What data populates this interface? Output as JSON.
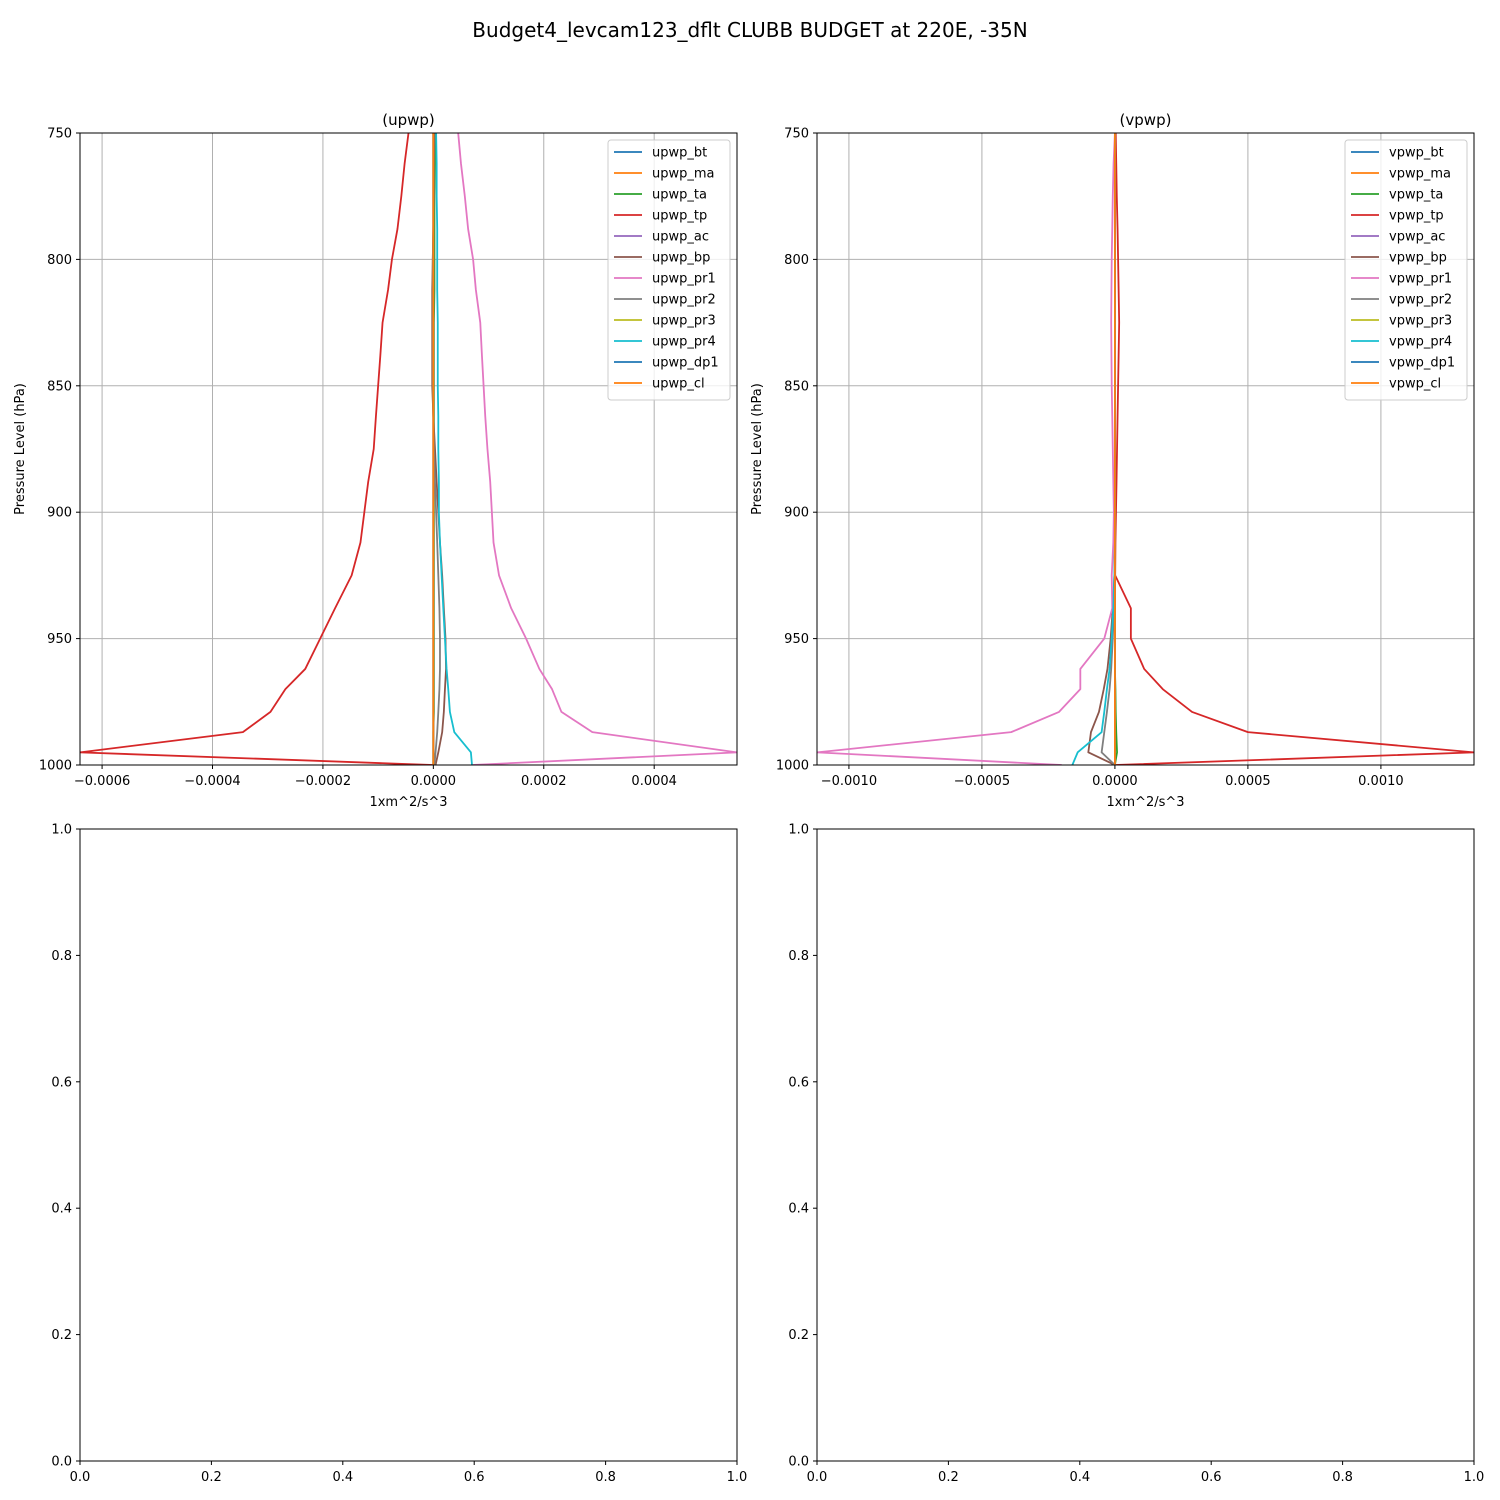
{
  "figure": {
    "title": "Budget4_levcam123_dflt CLUBB BUDGET at 220E, -35N"
  },
  "colors": [
    "#1f77b4",
    "#ff7f0e",
    "#2ca02c",
    "#d62728",
    "#9467bd",
    "#8c564b",
    "#e377c2",
    "#7f7f7f",
    "#bcbd22",
    "#17becf",
    "#1f77b4",
    "#ff7f0e"
  ],
  "chart_data": [
    {
      "type": "line",
      "title": "(upwp)",
      "xlabel": "1xm^2/s^3",
      "ylabel": "Pressure Level (hPa)",
      "xlim": [
        -0.00064,
        0.00055
      ],
      "ylim": [
        1000,
        750
      ],
      "xticks": [
        -0.0006,
        -0.0004,
        -0.0002,
        0.0,
        0.0002,
        0.0004
      ],
      "xtick_labels": [
        "−0.0006",
        "−0.0004",
        "−0.0002",
        "0.0000",
        "0.0002",
        "0.0004"
      ],
      "yticks": [
        750,
        800,
        850,
        900,
        950,
        1000
      ],
      "ytick_labels": [
        "750",
        "800",
        "850",
        "900",
        "950",
        "1000"
      ],
      "grid": true,
      "legend": "top-right",
      "levels": [
        750,
        762,
        775,
        788,
        800,
        812,
        825,
        838,
        850,
        862,
        875,
        888,
        900,
        912,
        925,
        938,
        950,
        962,
        970,
        979,
        987,
        995,
        1000
      ],
      "series": [
        {
          "name": "upwp_bt",
          "values": [
            0,
            0,
            0,
            0,
            0,
            0,
            0,
            0,
            0,
            0,
            0,
            0,
            0,
            0,
            0,
            0,
            0,
            0,
            0,
            0,
            0,
            0,
            0
          ]
        },
        {
          "name": "upwp_ma",
          "values": [
            0,
            0,
            0,
            0,
            0,
            0,
            0,
            0,
            0,
            0,
            0,
            0,
            0,
            0,
            0,
            0,
            0,
            0,
            0,
            0,
            0,
            0,
            0
          ]
        },
        {
          "name": "upwp_ta",
          "values": [
            3e-06,
            3e-06,
            2e-06,
            2e-06,
            2e-06,
            2e-06,
            1e-06,
            1e-06,
            1e-06,
            1e-06,
            1e-06,
            1e-06,
            1e-06,
            1e-06,
            1e-06,
            1e-06,
            1e-06,
            1e-06,
            1e-06,
            1e-06,
            0,
            0,
            0
          ]
        },
        {
          "name": "upwp_tp",
          "values": [
            -4.5e-05,
            -5.2e-05,
            -5.8e-05,
            -6.5e-05,
            -7.5e-05,
            -8.2e-05,
            -9.2e-05,
            -9.6e-05,
            -0.0001,
            -0.000104,
            -0.000108,
            -0.000118,
            -0.000125,
            -0.000132,
            -0.000148,
            -0.000178,
            -0.000205,
            -0.000232,
            -0.000268,
            -0.000295,
            -0.000345,
            -0.00064,
            0
          ]
        },
        {
          "name": "upwp_ac",
          "values": [
            0,
            0,
            0,
            0,
            0,
            0,
            0,
            0,
            0,
            0,
            0,
            0,
            0,
            0,
            0,
            0,
            0,
            0,
            0,
            0,
            0,
            0,
            0
          ]
        },
        {
          "name": "upwp_bp",
          "values": [
            2e-06,
            1e-06,
            1e-06,
            0,
            -1e-06,
            -2e-06,
            -2e-06,
            -2e-06,
            -2e-06,
            0,
            3e-06,
            6e-06,
            9e-06,
            1.2e-05,
            1.6e-05,
            1.9e-05,
            2.2e-05,
            2.3e-05,
            2.1e-05,
            1.9e-05,
            1.6e-05,
            9e-06,
            4e-06
          ]
        },
        {
          "name": "upwp_pr1",
          "values": [
            4.5e-05,
            5e-05,
            5.7e-05,
            6.3e-05,
            7.2e-05,
            7.7e-05,
            8.5e-05,
            8.8e-05,
            9.1e-05,
            9.4e-05,
            9.8e-05,
            0.000103,
            0.000106,
            0.000109,
            0.000119,
            0.000141,
            0.000168,
            0.000192,
            0.000215,
            0.000232,
            0.000288,
            0.00055,
            7e-05
          ]
        },
        {
          "name": "upwp_pr2",
          "values": [
            0,
            0,
            0,
            0,
            -1e-06,
            -1e-06,
            -1e-06,
            -1e-06,
            -1e-06,
            0,
            1e-06,
            3e-06,
            5e-06,
            7e-06,
            9e-06,
            1.1e-05,
            1.2e-05,
            1.2e-05,
            1.1e-05,
            9e-06,
            7e-06,
            4e-06,
            2e-06
          ]
        },
        {
          "name": "upwp_pr3",
          "values": [
            0,
            0,
            0,
            0,
            0,
            0,
            0,
            0,
            0,
            0,
            0,
            0,
            0,
            0,
            0,
            0,
            0,
            0,
            0,
            0,
            0,
            0,
            0
          ]
        },
        {
          "name": "upwp_pr4",
          "values": [
            5e-06,
            6e-06,
            6e-06,
            7e-06,
            7e-06,
            7e-06,
            8e-06,
            8e-06,
            8e-06,
            9e-06,
            9e-06,
            1e-05,
            1e-05,
            1.2e-05,
            1.5e-05,
            1.8e-05,
            2.1e-05,
            2.4e-05,
            2.7e-05,
            3e-05,
            3.8e-05,
            6.8e-05,
            7e-05
          ]
        },
        {
          "name": "upwp_dp1",
          "values": [
            0,
            0,
            0,
            0,
            0,
            0,
            0,
            0,
            0,
            0,
            0,
            0,
            0,
            0,
            0,
            0,
            0,
            0,
            0,
            0,
            0,
            0,
            0
          ]
        },
        {
          "name": "upwp_cl",
          "values": [
            0,
            0,
            0,
            0,
            0,
            0,
            0,
            0,
            0,
            0,
            0,
            0,
            0,
            0,
            0,
            0,
            0,
            0,
            0,
            0,
            0,
            0,
            0
          ]
        }
      ]
    },
    {
      "type": "line",
      "title": "(vpwp)",
      "xlabel": "1xm^2/s^3",
      "ylabel": "Pressure Level (hPa)",
      "xlim": [
        -0.00112,
        0.00135
      ],
      "ylim": [
        1000,
        750
      ],
      "xticks": [
        -0.001,
        -0.0005,
        0.0,
        0.0005,
        0.001
      ],
      "xtick_labels": [
        "−0.0010",
        "−0.0005",
        "0.0000",
        "0.0005",
        "0.0010"
      ],
      "yticks": [
        750,
        800,
        850,
        900,
        950,
        1000
      ],
      "ytick_labels": [
        "750",
        "800",
        "850",
        "900",
        "950",
        "1000"
      ],
      "grid": true,
      "legend": "top-right",
      "levels": [
        750,
        762,
        775,
        788,
        800,
        812,
        825,
        838,
        850,
        862,
        875,
        888,
        900,
        912,
        925,
        938,
        950,
        962,
        970,
        979,
        987,
        995,
        1000
      ],
      "series": [
        {
          "name": "vpwp_bt",
          "values": [
            0,
            0,
            0,
            0,
            0,
            0,
            0,
            0,
            0,
            0,
            0,
            0,
            0,
            0,
            0,
            0,
            0,
            0,
            0,
            0,
            0,
            0,
            0
          ]
        },
        {
          "name": "vpwp_ma",
          "values": [
            0,
            0,
            0,
            0,
            0,
            0,
            0,
            0,
            0,
            0,
            0,
            0,
            0,
            0,
            0,
            0,
            0,
            0,
            0,
            0,
            0,
            0,
            0
          ]
        },
        {
          "name": "vpwp_ta",
          "values": [
            0,
            0,
            0,
            0,
            0,
            0,
            0,
            0,
            0,
            0,
            0,
            0,
            0,
            0,
            0,
            0,
            0,
            0,
            2e-06,
            3e-06,
            5e-06,
            8e-06,
            0
          ]
        },
        {
          "name": "vpwp_tp",
          "values": [
            3e-06,
            5e-06,
            7e-06,
            1e-05,
            1.2e-05,
            1.4e-05,
            1.6e-05,
            1.4e-05,
            1.2e-05,
            1e-05,
            8e-06,
            6e-06,
            4e-06,
            2e-06,
            1e-06,
            6e-05,
            6e-05,
            0.00011,
            0.00018,
            0.00029,
            0.0005,
            0.00135,
            0
          ]
        },
        {
          "name": "vpwp_ac",
          "values": [
            0,
            0,
            0,
            0,
            0,
            0,
            0,
            0,
            0,
            0,
            0,
            0,
            0,
            0,
            0,
            0,
            0,
            0,
            0,
            0,
            0,
            0,
            0
          ]
        },
        {
          "name": "vpwp_bp",
          "values": [
            0,
            0,
            0,
            0,
            0,
            0,
            0,
            0,
            0,
            0,
            0,
            0,
            0,
            0,
            -2e-06,
            -8e-06,
            -1.6e-05,
            -2.8e-05,
            -4.2e-05,
            -6e-05,
            -9e-05,
            -0.0001,
            0
          ]
        },
        {
          "name": "vpwp_pr1",
          "values": [
            0,
            -5e-06,
            -8e-06,
            -1e-05,
            -1.2e-05,
            -1.3e-05,
            -1.4e-05,
            -1.3e-05,
            -1.2e-05,
            -1e-05,
            -8e-06,
            -6e-06,
            -4e-06,
            -6e-06,
            -1.2e-05,
            -1e-05,
            -4e-05,
            -0.00013,
            -0.00013,
            -0.00021,
            -0.00039,
            -0.00112,
            -0.0002
          ]
        },
        {
          "name": "vpwp_pr2",
          "values": [
            0,
            0,
            0,
            0,
            0,
            0,
            0,
            0,
            0,
            0,
            0,
            0,
            0,
            0,
            -1e-06,
            -4e-06,
            -8e-06,
            -1.4e-05,
            -2e-05,
            -3e-05,
            -4e-05,
            -5e-05,
            0
          ]
        },
        {
          "name": "vpwp_pr3",
          "values": [
            0,
            0,
            0,
            0,
            0,
            0,
            0,
            0,
            0,
            0,
            0,
            0,
            0,
            0,
            0,
            0,
            0,
            0,
            0,
            0,
            0,
            0,
            0
          ]
        },
        {
          "name": "vpwp_pr4",
          "values": [
            0,
            0,
            0,
            0,
            0,
            0,
            0,
            0,
            0,
            0,
            0,
            0,
            0,
            0,
            -2e-06,
            -6e-06,
            -1.2e-05,
            -2e-05,
            -3e-05,
            -4e-05,
            -5e-05,
            -0.00014,
            -0.00016
          ]
        },
        {
          "name": "vpwp_dp1",
          "values": [
            0,
            0,
            0,
            0,
            0,
            0,
            0,
            0,
            0,
            0,
            0,
            0,
            0,
            0,
            0,
            0,
            0,
            0,
            0,
            0,
            0,
            0,
            0
          ]
        },
        {
          "name": "vpwp_cl",
          "values": [
            0,
            0,
            0,
            0,
            0,
            0,
            0,
            0,
            0,
            0,
            0,
            0,
            0,
            0,
            0,
            0,
            0,
            0,
            0,
            0,
            0,
            0,
            0
          ]
        }
      ]
    },
    {
      "type": "line",
      "title": "",
      "xlim": [
        0,
        1
      ],
      "ylim": [
        0,
        1
      ],
      "xticks": [
        0,
        0.2,
        0.4,
        0.6,
        0.8,
        1.0
      ],
      "xtick_labels": [
        "0.0",
        "0.2",
        "0.4",
        "0.6",
        "0.8",
        "1.0"
      ],
      "yticks": [
        0,
        0.2,
        0.4,
        0.6,
        0.8,
        1.0
      ],
      "ytick_labels": [
        "0.0",
        "0.2",
        "0.4",
        "0.6",
        "0.8",
        "1.0"
      ],
      "grid": false,
      "series": []
    },
    {
      "type": "line",
      "title": "",
      "xlim": [
        0,
        1
      ],
      "ylim": [
        0,
        1
      ],
      "xticks": [
        0,
        0.2,
        0.4,
        0.6,
        0.8,
        1.0
      ],
      "xtick_labels": [
        "0.0",
        "0.2",
        "0.4",
        "0.6",
        "0.8",
        "1.0"
      ],
      "yticks": [
        0,
        0.2,
        0.4,
        0.6,
        0.8,
        1.0
      ],
      "ytick_labels": [
        "0.0",
        "0.2",
        "0.4",
        "0.6",
        "0.8",
        "1.0"
      ],
      "grid": false,
      "series": []
    }
  ]
}
